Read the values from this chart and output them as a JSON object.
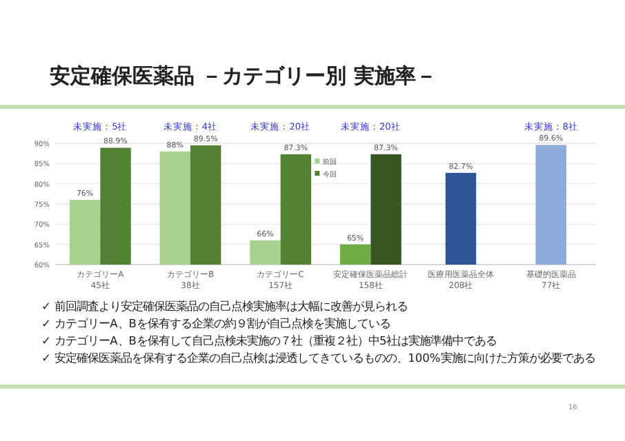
{
  "chart_data": {
    "type": "bar",
    "title": "安定確保医薬品 －カテゴリー別 実施率－",
    "categories": [
      "カテゴリーA\n45社",
      "カテゴリーB\n38社",
      "カテゴリーC\n157社",
      "安定確保医薬品総計\n158社",
      "医療用医薬品全体\n208社",
      "基礎的医薬品\n77社"
    ],
    "series": [
      {
        "name": "前回",
        "color": "#a9d18e",
        "colors": [
          "#a9d18e",
          "#a9d18e",
          "#a9d18e",
          "#70ad47",
          null,
          null
        ],
        "values": [
          76,
          88,
          66,
          65,
          null,
          null
        ],
        "value_labels": [
          "76%",
          "88%",
          "66%",
          "65%",
          null,
          null
        ]
      },
      {
        "name": "今回",
        "color": "#548235",
        "colors": [
          "#548235",
          "#548235",
          "#548235",
          "#375623",
          "#2f5597",
          "#8faadc"
        ],
        "values": [
          88.9,
          89.5,
          87.3,
          87.3,
          82.7,
          89.6
        ],
        "value_labels": [
          "88.9%",
          "89.5%",
          "87.3%",
          "87.3%",
          "82.7%",
          "89.6%"
        ]
      }
    ],
    "ylim": [
      60,
      90
    ],
    "yticks": [
      {
        "value": 60,
        "label": "60%"
      },
      {
        "value": 65,
        "label": "65%"
      },
      {
        "value": 70,
        "label": "70%"
      },
      {
        "value": 75,
        "label": "75%"
      },
      {
        "value": 80,
        "label": "80%"
      },
      {
        "value": 85,
        "label": "85%"
      },
      {
        "value": 90,
        "label": "90%"
      }
    ],
    "grid": "y",
    "legend": "top",
    "annotations": [
      "未実施：5社",
      "未実施：4社",
      "未実施：20社",
      "未実施：20社",
      "未実施：8社",
      "✓ 前回調査より安定確保医薬品の自己点検実施率は大幅に改善が見られる",
      "✓ カテゴリーA、Bを保有する企業の約９割が自己点検を実施している",
      "✓ カテゴリーA、Bを保有して自己点検未実施の７社（重複２社）中5社は実施準備中である",
      "✓ 安定確保医薬品を保有する企業の自己点検は浸透してきているものの、100%実施に向けた方策が必要である",
      "16"
    ]
  }
}
